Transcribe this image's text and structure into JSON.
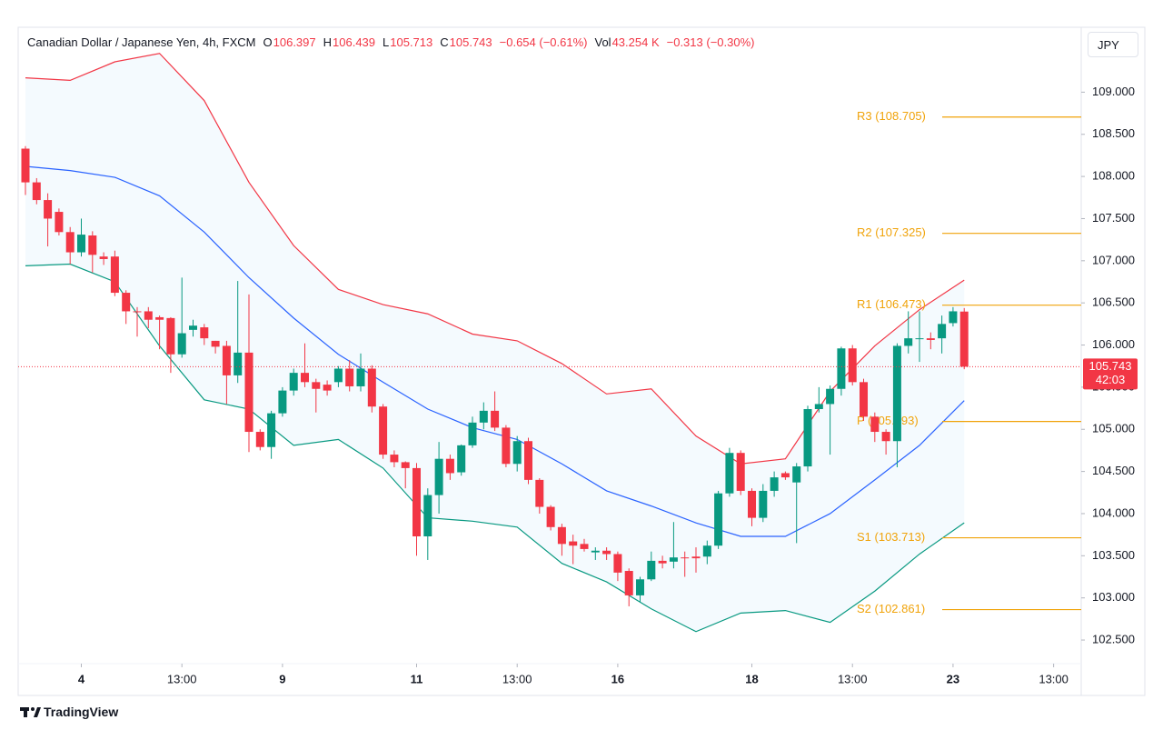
{
  "header": {
    "symbol": "Canadian Dollar / Japanese Yen, 4h, FXCM",
    "o_label": "O",
    "o": "106.397",
    "h_label": "H",
    "h": "106.439",
    "l_label": "L",
    "l": "105.713",
    "c_label": "C",
    "c": "105.743",
    "change": "−0.654 (−0.61%)",
    "vol_label": "Vol",
    "vol": "43.254 K",
    "vol_change": "−0.313 (−0.30%)"
  },
  "currency": "JPY",
  "footer": {
    "brand": "TradingView"
  },
  "chart_data": {
    "type": "candlestick",
    "up_color": "#089981",
    "down_color": "#f23645",
    "x": [
      0,
      1,
      2,
      3,
      4,
      5,
      6,
      7,
      8,
      9,
      10,
      11,
      12,
      13,
      14,
      15,
      16,
      17,
      18,
      19,
      20,
      21,
      22,
      23,
      24,
      25,
      26,
      27,
      28,
      29,
      30,
      31,
      32,
      33,
      34,
      35,
      36,
      37,
      38,
      39,
      40,
      41,
      42,
      43,
      44,
      45,
      46,
      47,
      48,
      49,
      50,
      51,
      52,
      53,
      54,
      55,
      56,
      57,
      58,
      59,
      60,
      61,
      62,
      63,
      64,
      65,
      66,
      67,
      68,
      69,
      70,
      71,
      72,
      73,
      74,
      75,
      76,
      77,
      78,
      79,
      80,
      81,
      82,
      83,
      84
    ],
    "open": [
      108.33,
      107.93,
      107.72,
      107.58,
      107.34,
      107.1,
      107.3,
      107.05,
      107.05,
      106.62,
      106.4,
      106.4,
      106.33,
      106.32,
      105.89,
      106.18,
      106.21,
      106.05,
      105.99,
      105.64,
      105.91,
      104.97,
      104.79,
      105.19,
      105.46,
      105.67,
      105.56,
      105.53,
      105.56,
      105.72,
      105.51,
      105.72,
      105.27,
      104.7,
      104.61,
      104.54,
      103.73,
      104.22,
      104.65,
      104.49,
      104.81,
      105.08,
      105.22,
      105.02,
      104.59,
      104.86,
      104.4,
      104.08,
      103.84,
      103.67,
      103.64,
      103.54,
      103.56,
      103.52,
      103.32,
      103.03,
      103.22,
      103.44,
      103.43,
      103.48,
      103.49,
      103.49,
      103.62,
      104.24,
      104.72,
      104.27,
      103.95,
      104.27,
      104.48,
      104.37,
      104.56,
      105.24,
      105.3,
      105.48,
      105.96,
      105.56,
      105.15,
      104.97,
      104.86,
      105.99,
      106.07,
      106.08,
      106.08,
      106.26,
      106.397
    ],
    "high": [
      108.36,
      107.98,
      107.8,
      107.62,
      107.4,
      107.5,
      107.35,
      107.1,
      107.12,
      106.65,
      106.45,
      106.45,
      106.35,
      106.33,
      106.8,
      106.3,
      106.25,
      106.05,
      106.05,
      106.76,
      106.6,
      105.0,
      105.22,
      105.5,
      105.72,
      106.02,
      105.6,
      105.58,
      105.75,
      105.82,
      105.9,
      105.76,
      105.3,
      104.75,
      104.62,
      104.6,
      104.3,
      104.85,
      104.7,
      104.82,
      105.15,
      105.32,
      105.45,
      105.05,
      104.92,
      104.9,
      104.42,
      104.1,
      103.88,
      103.75,
      103.7,
      103.6,
      103.6,
      103.55,
      103.35,
      103.25,
      103.55,
      103.5,
      103.9,
      103.55,
      103.6,
      103.68,
      104.27,
      104.78,
      104.75,
      104.3,
      104.35,
      104.5,
      104.5,
      104.6,
      105.28,
      105.5,
      105.52,
      105.98,
      106.0,
      105.6,
      105.2,
      105.0,
      106.02,
      106.4,
      106.4,
      106.15,
      106.35,
      106.45,
      106.439
    ],
    "low": [
      107.78,
      107.67,
      107.17,
      107.3,
      106.96,
      107.05,
      106.86,
      106.95,
      106.58,
      106.25,
      106.1,
      106.2,
      105.95,
      105.67,
      105.85,
      106.1,
      106.0,
      105.9,
      105.3,
      105.55,
      104.73,
      104.75,
      104.65,
      105.15,
      105.4,
      105.5,
      105.2,
      105.4,
      105.5,
      105.45,
      105.45,
      105.2,
      104.65,
      104.55,
      104.3,
      103.5,
      103.45,
      104.0,
      104.4,
      104.45,
      104.78,
      105.0,
      104.98,
      104.55,
      104.5,
      104.35,
      104.0,
      103.8,
      103.5,
      103.4,
      103.55,
      103.45,
      103.45,
      103.2,
      102.9,
      102.95,
      103.2,
      103.35,
      103.35,
      103.25,
      103.3,
      103.4,
      103.58,
      104.2,
      104.22,
      103.85,
      103.9,
      104.2,
      104.4,
      103.65,
      104.5,
      105.2,
      104.7,
      105.4,
      105.52,
      105.1,
      104.85,
      104.7,
      104.55,
      105.9,
      105.8,
      105.95,
      105.9,
      106.22,
      105.713
    ],
    "close": [
      107.93,
      107.72,
      107.5,
      107.34,
      107.1,
      107.31,
      107.07,
      107.02,
      106.62,
      106.4,
      106.39,
      106.3,
      106.3,
      105.89,
      106.14,
      106.23,
      106.08,
      105.98,
      105.64,
      105.91,
      104.97,
      104.79,
      105.19,
      105.46,
      105.67,
      105.56,
      105.48,
      105.46,
      105.72,
      105.51,
      105.72,
      105.27,
      104.7,
      104.61,
      104.54,
      103.73,
      104.22,
      104.65,
      104.48,
      104.81,
      105.08,
      105.22,
      105.02,
      104.59,
      104.86,
      104.4,
      104.08,
      103.84,
      103.64,
      103.62,
      103.58,
      103.56,
      103.52,
      103.3,
      103.03,
      103.22,
      103.44,
      103.41,
      103.48,
      103.47,
      103.47,
      103.62,
      104.24,
      104.72,
      104.27,
      103.95,
      104.27,
      104.43,
      104.43,
      104.56,
      105.24,
      105.3,
      105.48,
      105.96,
      105.56,
      105.15,
      104.97,
      104.86,
      105.99,
      106.08,
      106.08,
      106.06,
      106.25,
      106.4,
      105.743
    ],
    "countdown": "42:03",
    "band_fill": "#2196f3",
    "bands": {
      "x": [
        0,
        4,
        8,
        12,
        16,
        20,
        24,
        28,
        32,
        36,
        40,
        44,
        48,
        52,
        56,
        60,
        64,
        68,
        72,
        76,
        80,
        84
      ],
      "series": [
        {
          "color": "#f23645",
          "values": [
            109.17,
            109.14,
            109.36,
            109.46,
            108.9,
            107.93,
            107.18,
            106.66,
            106.48,
            106.37,
            106.13,
            106.05,
            105.78,
            105.42,
            105.48,
            104.92,
            104.59,
            104.65,
            105.45,
            105.99,
            106.42,
            106.77
          ]
        },
        {
          "color": "#2962ff",
          "values": [
            108.12,
            108.07,
            107.99,
            107.77,
            107.34,
            106.8,
            106.32,
            105.89,
            105.56,
            105.24,
            105.02,
            104.88,
            104.59,
            104.27,
            104.09,
            103.89,
            103.73,
            103.73,
            104.0,
            104.4,
            104.81,
            105.34
          ]
        },
        {
          "color": "#089981",
          "values": [
            106.94,
            106.96,
            106.75,
            105.99,
            105.35,
            105.24,
            104.81,
            104.88,
            104.54,
            103.95,
            103.91,
            103.84,
            103.41,
            103.19,
            102.87,
            102.6,
            102.82,
            102.85,
            102.71,
            103.08,
            103.52,
            103.89
          ]
        }
      ]
    },
    "levels_color": "#f0a30a",
    "levels": [
      {
        "label": "R3 (108.705)",
        "value": 108.705
      },
      {
        "label": "R2 (107.325)",
        "value": 107.325
      },
      {
        "label": "R1 (106.473)",
        "value": 106.473
      },
      {
        "label": "P (105.093)",
        "value": 105.093
      },
      {
        "label": "S1 (103.713)",
        "value": 103.713
      },
      {
        "label": "S2 (102.861)",
        "value": 102.861
      }
    ],
    "xlim": [
      -0.65,
      94.47
    ],
    "xticks": [
      {
        "value": 5,
        "label": "4"
      },
      {
        "value": 14,
        "label": "13:00"
      },
      {
        "value": 23,
        "label": "9"
      },
      {
        "value": 35,
        "label": "11"
      },
      {
        "value": 44,
        "label": "13:00"
      },
      {
        "value": 53,
        "label": "16"
      },
      {
        "value": 65,
        "label": "18"
      },
      {
        "value": 74,
        "label": "13:00"
      },
      {
        "value": 83,
        "label": "23"
      },
      {
        "value": 92,
        "label": "13:00"
      }
    ],
    "ylim": [
      102.22,
      109.77
    ],
    "yticks": [
      {
        "value": 109,
        "label": "109.000"
      },
      {
        "value": 108.5,
        "label": "108.500"
      },
      {
        "value": 108,
        "label": "108.000"
      },
      {
        "value": 107.5,
        "label": "107.500"
      },
      {
        "value": 107,
        "label": "107.000"
      },
      {
        "value": 106.5,
        "label": "106.500"
      },
      {
        "value": 106,
        "label": "106.000"
      },
      {
        "value": 105.5,
        "label": "105.500"
      },
      {
        "value": 105,
        "label": "105.000"
      },
      {
        "value": 104.5,
        "label": "104.500"
      },
      {
        "value": 104,
        "label": "104.000"
      },
      {
        "value": 103.5,
        "label": "103.500"
      },
      {
        "value": 103,
        "label": "103.000"
      },
      {
        "value": 102.5,
        "label": "102.500"
      }
    ]
  }
}
